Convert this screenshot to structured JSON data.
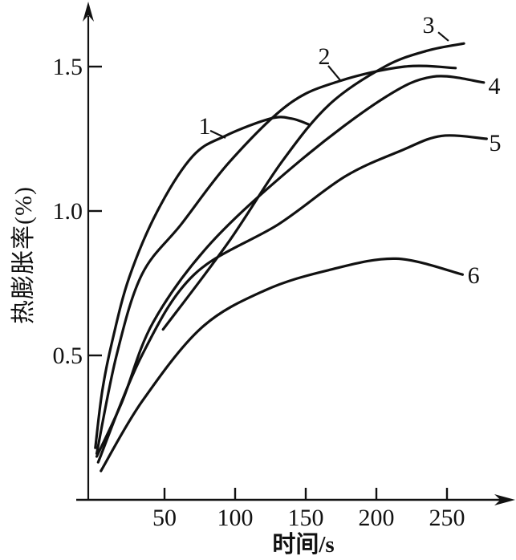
{
  "figure": {
    "x_axis_title": "时间/s",
    "y_axis_title": "热膨胀率(%)"
  },
  "chart_data": {
    "type": "line",
    "title": "",
    "xlabel": "时间/s",
    "ylabel": "热膨胀率(%)",
    "xlim": [
      0,
      290
    ],
    "ylim": [
      0,
      1.72
    ],
    "grid": false,
    "legend_position": "none",
    "line_color": "#111111",
    "x_ticks": [
      50,
      100,
      150,
      200,
      250
    ],
    "y_ticks": [
      {
        "value": 0.5,
        "label": "0.5"
      },
      {
        "value": 1.0,
        "label": "1.0"
      },
      {
        "value": 1.5,
        "label": "1.5"
      }
    ],
    "series": [
      {
        "name": "1",
        "points": [
          [
            1,
            0.18
          ],
          [
            6,
            0.38
          ],
          [
            13,
            0.55
          ],
          [
            25,
            0.77
          ],
          [
            45,
            1.0
          ],
          [
            70,
            1.19
          ],
          [
            93,
            1.26
          ],
          [
            125,
            1.32
          ],
          [
            140,
            1.32
          ],
          [
            152,
            1.3
          ]
        ]
      },
      {
        "name": "2",
        "points": [
          [
            2,
            0.16
          ],
          [
            16,
            0.5
          ],
          [
            34,
            0.78
          ],
          [
            62,
            0.955
          ],
          [
            96,
            1.17
          ],
          [
            138,
            1.37
          ],
          [
            174,
            1.45
          ],
          [
            220,
            1.5
          ],
          [
            256,
            1.495
          ]
        ]
      },
      {
        "name": "3",
        "points": [
          [
            49,
            0.59
          ],
          [
            95,
            0.89
          ],
          [
            133,
            1.17
          ],
          [
            167,
            1.37
          ],
          [
            206,
            1.5
          ],
          [
            236,
            1.555
          ],
          [
            262,
            1.58
          ]
        ]
      },
      {
        "name": "4",
        "points": [
          [
            2,
            0.15
          ],
          [
            20,
            0.34
          ],
          [
            42,
            0.615
          ],
          [
            83,
            0.89
          ],
          [
            145,
            1.17
          ],
          [
            205,
            1.39
          ],
          [
            240,
            1.465
          ],
          [
            276,
            1.445
          ]
        ]
      },
      {
        "name": "5",
        "points": [
          [
            3,
            0.13
          ],
          [
            34,
            0.5
          ],
          [
            71,
            0.78
          ],
          [
            131,
            0.955
          ],
          [
            178,
            1.12
          ],
          [
            218,
            1.21
          ],
          [
            246,
            1.26
          ],
          [
            278,
            1.25
          ]
        ]
      },
      {
        "name": "6",
        "points": [
          [
            5,
            0.1
          ],
          [
            34,
            0.34
          ],
          [
            76,
            0.595
          ],
          [
            121,
            0.725
          ],
          [
            166,
            0.795
          ],
          [
            214,
            0.835
          ],
          [
            261,
            0.78
          ]
        ]
      }
    ],
    "annotations": [
      {
        "text": "1",
        "x": 78.4,
        "y": 1.294,
        "leader": [
          [
            82.4,
            1.278
          ],
          [
            93.2,
            1.253
          ]
        ]
      },
      {
        "text": "2",
        "x": 163.1,
        "y": 1.536,
        "leader": [
          [
            165.9,
            1.503
          ],
          [
            174.4,
            1.453
          ]
        ]
      },
      {
        "text": "3",
        "x": 236.9,
        "y": 1.644,
        "leader": [
          [
            243.8,
            1.619
          ],
          [
            251.1,
            1.589
          ]
        ]
      },
      {
        "text": "4",
        "x": 283.5,
        "y": 1.433,
        "leader": null
      },
      {
        "text": "5",
        "x": 284.1,
        "y": 1.236,
        "leader": null
      },
      {
        "text": "6",
        "x": 268.8,
        "y": 0.778,
        "leader": null
      }
    ]
  }
}
